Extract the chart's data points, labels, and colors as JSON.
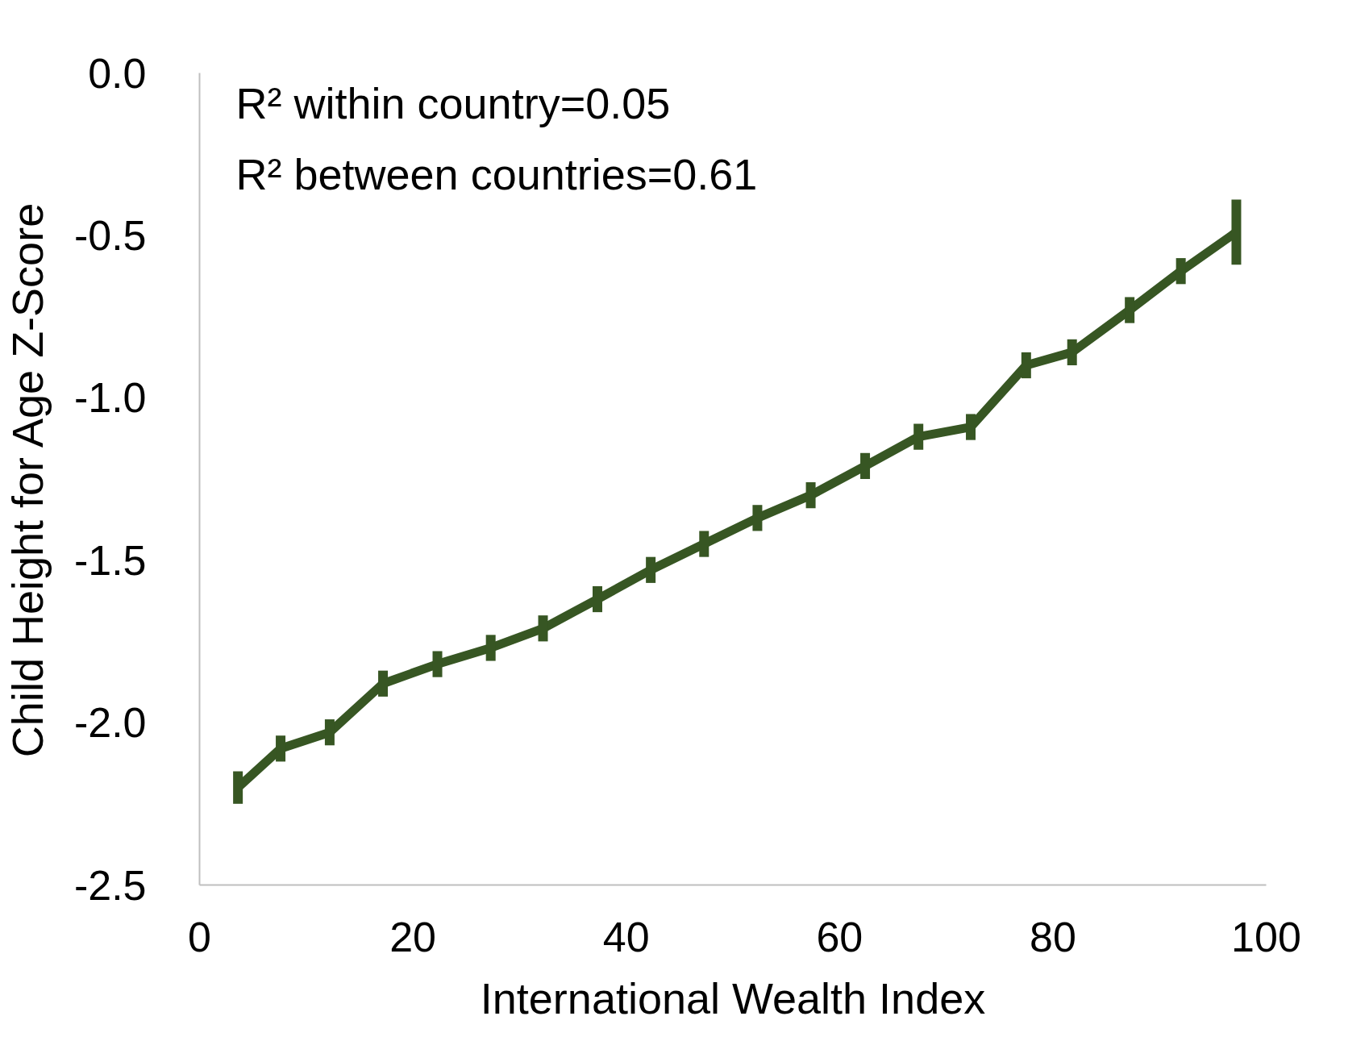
{
  "chart_data": {
    "type": "line",
    "xlabel": "International Wealth Index",
    "ylabel": "Child Height for Age Z-Score",
    "annotations": [
      "R² within country=0.05",
      "R² between countries=0.61"
    ],
    "x": [
      3.6,
      7.6,
      12.2,
      17.2,
      22.3,
      27.3,
      32.2,
      37.3,
      42.3,
      47.3,
      52.3,
      57.3,
      62.4,
      67.4,
      72.3,
      77.5,
      81.8,
      87.2,
      92.0,
      97.2
    ],
    "series": [
      {
        "color": "#375623",
        "values": [
          -2.2,
          -2.08,
          -2.03,
          -1.88,
          -1.82,
          -1.77,
          -1.71,
          -1.62,
          -1.53,
          -1.45,
          -1.37,
          -1.3,
          -1.21,
          -1.12,
          -1.09,
          -0.9,
          -0.86,
          -0.73,
          -0.61,
          -0.49
        ],
        "errors": [
          0.05,
          0.04,
          0.04,
          0.04,
          0.04,
          0.04,
          0.04,
          0.04,
          0.04,
          0.04,
          0.04,
          0.04,
          0.04,
          0.04,
          0.04,
          0.04,
          0.04,
          0.04,
          0.04,
          0.1
        ]
      }
    ],
    "xlim": [
      0,
      100
    ],
    "ylim": [
      -2.5,
      0
    ],
    "xticks": [
      0,
      20,
      40,
      60,
      80,
      100
    ],
    "yticks": [
      {
        "value": 0,
        "label": "0.0"
      },
      {
        "value": -0.5,
        "label": "-0.5"
      },
      {
        "value": -1,
        "label": "-1.0"
      },
      {
        "value": -1.5,
        "label": "-1.5"
      },
      {
        "value": -2,
        "label": "-2.0"
      },
      {
        "value": -2.5,
        "label": "-2.5"
      }
    ],
    "grid": false,
    "marker": "none",
    "line_style": "solid"
  }
}
